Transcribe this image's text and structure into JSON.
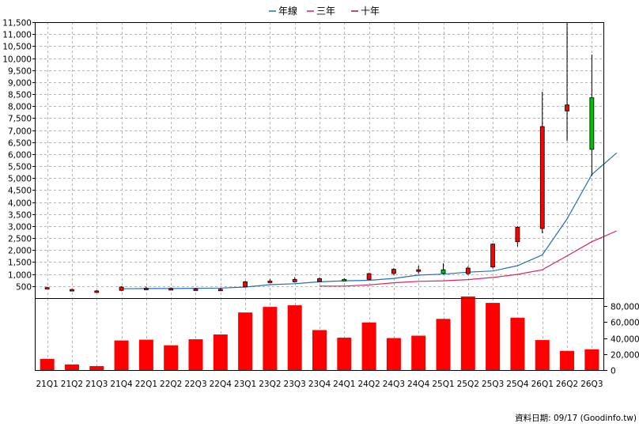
{
  "chart_data": {
    "type": "candlestick",
    "legend": {
      "placement": "top-center",
      "items": [
        {
          "name": "年線",
          "color": "#1f6fbf"
        },
        {
          "name": "三年",
          "color": "#e0215a"
        },
        {
          "name": "十年",
          "color": "#8b1a4a"
        }
      ]
    },
    "categories": [
      "21Q1",
      "21Q2",
      "21Q3",
      "21Q4",
      "22Q1",
      "22Q2",
      "22Q3",
      "22Q4",
      "23Q1",
      "23Q2",
      "23Q3",
      "23Q4",
      "24Q1",
      "24Q2",
      "24Q3",
      "24Q4",
      "25Q1",
      "25Q2",
      "25Q3",
      "25Q4",
      "26Q1",
      "26Q2",
      "26Q3"
    ],
    "price": {
      "ylim": [
        0,
        11500
      ],
      "ticks": [
        "500",
        "1,000",
        "1,500",
        "2,000",
        "2,500",
        "3,000",
        "3,500",
        "4,000",
        "4,500",
        "5,000",
        "5,500",
        "6,000",
        "6,500",
        "7,000",
        "7,500",
        "8,000",
        "8,500",
        "9,000",
        "9,500",
        "10,000",
        "10,500",
        "11,000",
        "11,500"
      ],
      "grid": true,
      "candles": [
        {
          "open": 430,
          "close": 440,
          "high": 470,
          "low": 400
        },
        {
          "open": 350,
          "close": 360,
          "high": 380,
          "low": 320
        },
        {
          "open": 300,
          "close": 300,
          "high": 330,
          "low": 280
        },
        {
          "open": 320,
          "close": 460,
          "high": 500,
          "low": 290
        },
        {
          "open": 400,
          "close": 410,
          "high": 480,
          "low": 370
        },
        {
          "open": 380,
          "close": 400,
          "high": 450,
          "low": 350
        },
        {
          "open": 370,
          "close": 380,
          "high": 420,
          "low": 350
        },
        {
          "open": 360,
          "close": 370,
          "high": 410,
          "low": 340
        },
        {
          "open": 470,
          "close": 680,
          "high": 720,
          "low": 440
        },
        {
          "open": 680,
          "close": 710,
          "high": 800,
          "low": 650
        },
        {
          "open": 680,
          "close": 780,
          "high": 870,
          "low": 650
        },
        {
          "open": 690,
          "close": 810,
          "high": 870,
          "low": 670
        },
        {
          "open": 780,
          "close": 740,
          "high": 830,
          "low": 710
        },
        {
          "open": 780,
          "close": 1020,
          "high": 1050,
          "low": 760
        },
        {
          "open": 1030,
          "close": 1200,
          "high": 1250,
          "low": 960
        },
        {
          "open": 1150,
          "close": 1180,
          "high": 1350,
          "low": 1020
        },
        {
          "open": 1180,
          "close": 1040,
          "high": 1450,
          "low": 1000
        },
        {
          "open": 1020,
          "close": 1250,
          "high": 1330,
          "low": 970
        },
        {
          "open": 1300,
          "close": 2250,
          "high": 2280,
          "low": 1230
        },
        {
          "open": 2350,
          "close": 2950,
          "high": 3000,
          "low": 2150
        },
        {
          "open": 2900,
          "close": 7150,
          "high": 8600,
          "low": 2700
        },
        {
          "open": 7800,
          "close": 8050,
          "high": 11500,
          "low": 6550
        },
        {
          "open": 8350,
          "close": 6200,
          "high": 10150,
          "low": 5100
        }
      ],
      "series": [
        {
          "name": "年線",
          "start_index": 3,
          "values": [
            390,
            400,
            400,
            410,
            420,
            460,
            560,
            600,
            680,
            720,
            740,
            820,
            960,
            1000,
            1080,
            1130,
            1350,
            1800,
            3300,
            5150,
            6050
          ]
        },
        {
          "name": "三年",
          "start_index": 11,
          "values": [
            500,
            500,
            550,
            640,
            700,
            720,
            770,
            860,
            990,
            1180,
            1760,
            2350,
            2800
          ]
        }
      ]
    },
    "volume": {
      "ylim": [
        0,
        90000
      ],
      "ticks": [
        "0",
        "20,000",
        "40,000",
        "60,000",
        "80,000"
      ],
      "color": "#ff0000",
      "values": [
        14000,
        7000,
        5000,
        37000,
        38000,
        31000,
        38500,
        44500,
        72000,
        79000,
        81000,
        50000,
        40500,
        59500,
        40000,
        43000,
        64000,
        92000,
        84000,
        65500,
        37500,
        24000,
        26000
      ]
    },
    "footer": "資料日期: 09/17  (Goodinfo.tw)"
  }
}
